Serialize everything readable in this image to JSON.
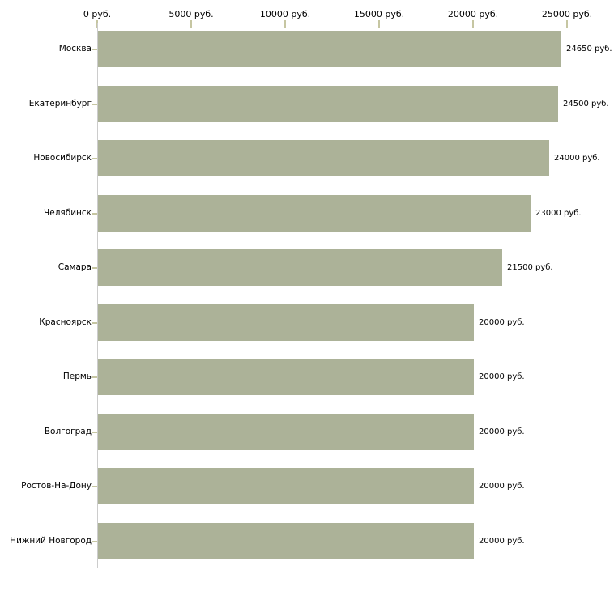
{
  "page": {
    "background": "#ffffff"
  },
  "chart_data": {
    "type": "bar",
    "orientation": "horizontal",
    "title": "",
    "legend": "none",
    "grid": "off",
    "unit": "руб.",
    "categories": [
      "Москва",
      "Екатеринбург",
      "Новосибирск",
      "Челябинск",
      "Самара",
      "Красноярск",
      "Пермь",
      "Волгоград",
      "Ростов-На-Дону",
      "Нижний Новгород"
    ],
    "values": [
      24650,
      24500,
      24000,
      23000,
      21500,
      20000,
      20000,
      20000,
      20000,
      20000
    ],
    "value_labels": [
      "24650 руб.",
      "24500 руб.",
      "24000 руб.",
      "23000 руб.",
      "21500 руб.",
      "20000 руб.",
      "20000 руб.",
      "20000 руб.",
      "20000 руб.",
      "20000 руб."
    ],
    "x_axis": {
      "position": "top",
      "tick_values": [
        0,
        5000,
        10000,
        15000,
        20000,
        25000
      ],
      "tick_labels": [
        "0 руб.",
        "5000 руб.",
        "10000 руб.",
        "15000 руб.",
        "20000 руб.",
        "25000 руб."
      ],
      "min": 0,
      "max": 26300
    },
    "colors": {
      "bar": "#acb298",
      "tick": "#c6c6a2",
      "axis_line": "#cccccc",
      "text": "#000000",
      "background": "#ffffff"
    }
  }
}
